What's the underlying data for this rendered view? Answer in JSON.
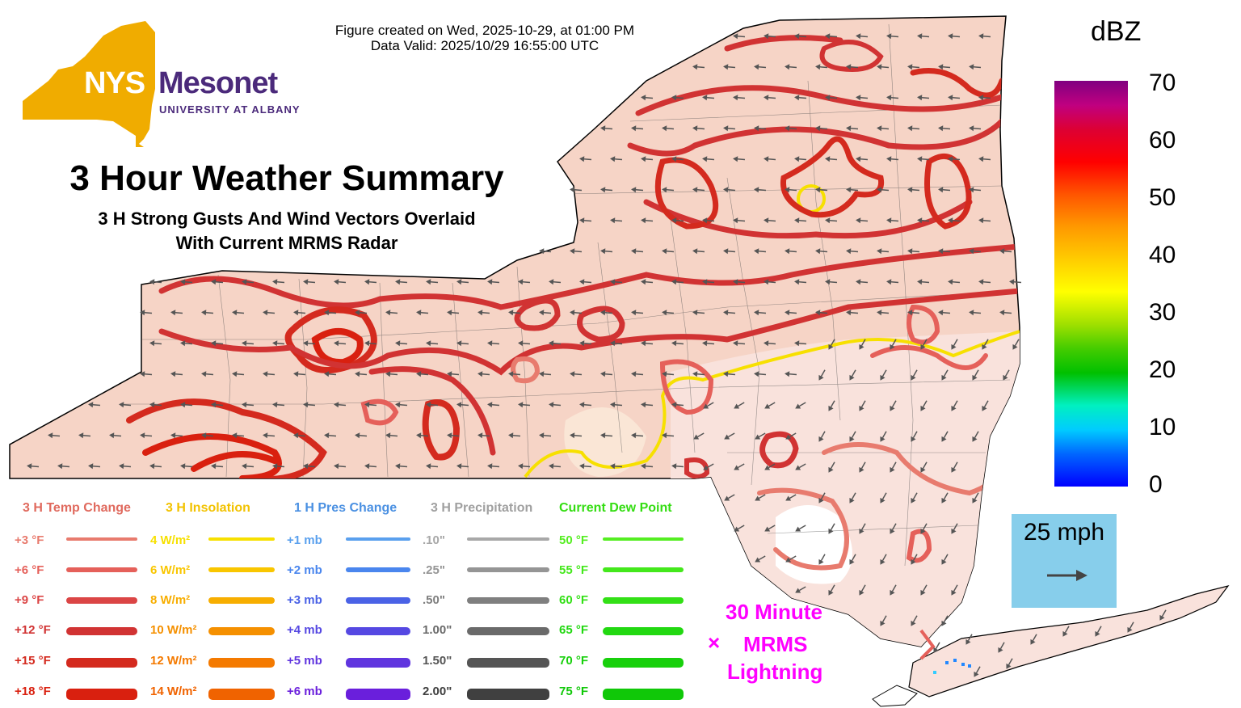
{
  "header": {
    "created": "Figure created on Wed, 2025-10-29, at 01:00 PM",
    "valid": "Data Valid: 2025/10/29 16:55:00 UTC"
  },
  "logo": {
    "nys": "NYS",
    "mesonet": "Mesonet",
    "university": "UNIVERSITY AT ALBANY",
    "brand_gold": "#f0ac00",
    "brand_purple": "#4b2a7b"
  },
  "title": "3 Hour Weather Summary",
  "subtitle_line1": "3 H Strong Gusts And Wind Vectors Overlaid",
  "subtitle_line2": "With Current MRMS Radar",
  "legend": {
    "columns": [
      {
        "header": "3 H Temp Change",
        "header_color": "#e06a5e",
        "items": [
          {
            "label": "+3 °F",
            "color": "#e87b6e"
          },
          {
            "label": "+6 °F",
            "color": "#e5605a"
          },
          {
            "label": "+9 °F",
            "color": "#db4545"
          },
          {
            "label": "+12 °F",
            "color": "#d13333"
          },
          {
            "label": "+15 °F",
            "color": "#d42a1e"
          },
          {
            "label": "+18 °F",
            "color": "#d9200f"
          }
        ]
      },
      {
        "header": "3 H Insolation",
        "header_color": "#f2c200",
        "items": [
          {
            "label": "4 W/m²",
            "color": "#f7e000"
          },
          {
            "label": "6 W/m²",
            "color": "#f9c600"
          },
          {
            "label": "8 W/m²",
            "color": "#f7ae00"
          },
          {
            "label": "10 W/m²",
            "color": "#f59000"
          },
          {
            "label": "12 W/m²",
            "color": "#f47a00"
          },
          {
            "label": "14 W/m²",
            "color": "#f06300"
          }
        ]
      },
      {
        "header": "1 H Pres Change",
        "header_color": "#4a90e2",
        "items": [
          {
            "label": "+1 mb",
            "color": "#5aa0ee"
          },
          {
            "label": "+2 mb",
            "color": "#4a86ee"
          },
          {
            "label": "+3 mb",
            "color": "#4a62e6"
          },
          {
            "label": "+4 mb",
            "color": "#5548e2"
          },
          {
            "label": "+5 mb",
            "color": "#6035df"
          },
          {
            "label": "+6 mb",
            "color": "#6a1fdc"
          }
        ]
      },
      {
        "header": "3 H Precipitation",
        "header_color": "#a0a0a0",
        "items": [
          {
            "label": ".10\"",
            "color": "#a8a8a8"
          },
          {
            "label": ".25\"",
            "color": "#959595"
          },
          {
            "label": ".50\"",
            "color": "#7f7f7f"
          },
          {
            "label": "1.00\"",
            "color": "#6a6a6a"
          },
          {
            "label": "1.50\"",
            "color": "#555555"
          },
          {
            "label": "2.00\"",
            "color": "#404040"
          }
        ]
      },
      {
        "header": "Current Dew Point",
        "header_color": "#33dd11",
        "items": [
          {
            "label": "50 °F",
            "color": "#55ee22"
          },
          {
            "label": "55 °F",
            "color": "#44e81c"
          },
          {
            "label": "60 °F",
            "color": "#33e016"
          },
          {
            "label": "65 °F",
            "color": "#22d811"
          },
          {
            "label": "70 °F",
            "color": "#18d00c"
          },
          {
            "label": "75 °F",
            "color": "#10c808"
          }
        ]
      }
    ]
  },
  "colorbar": {
    "title": "dBZ",
    "ticks": [
      "70",
      "60",
      "50",
      "40",
      "30",
      "20",
      "10",
      "0"
    ]
  },
  "wind_reference": {
    "label": "25 mph"
  },
  "lightning": {
    "line1": "30 Minute",
    "line2": "MRMS",
    "line3": "Lightning",
    "marker": "×"
  }
}
